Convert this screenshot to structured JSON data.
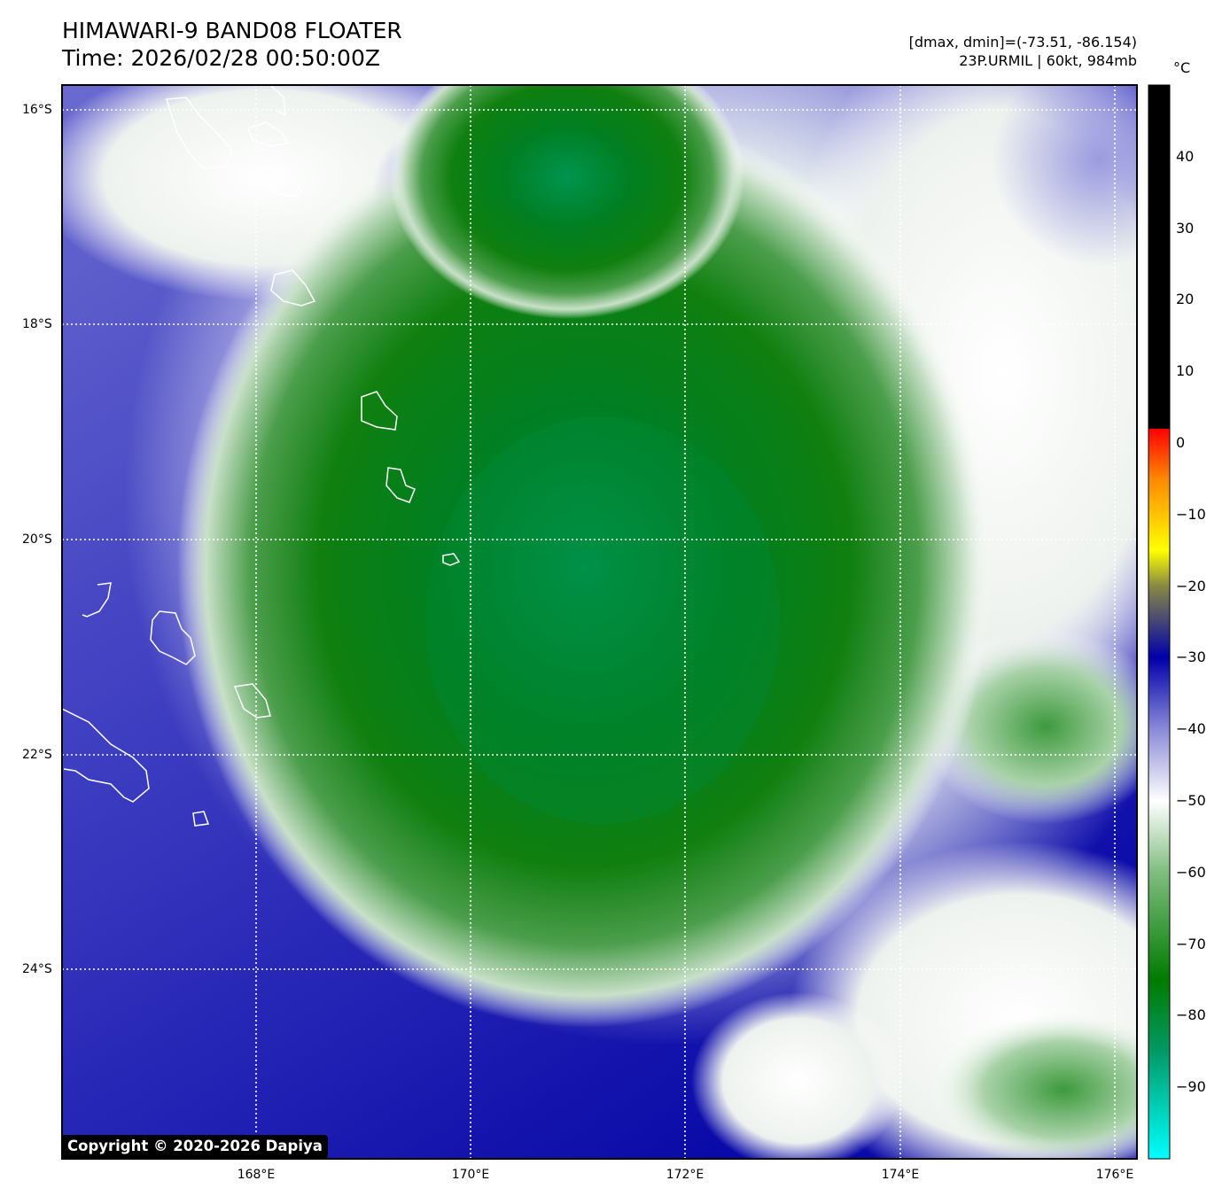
{
  "header": {
    "title": "HIMAWARI-9 BAND08 FLOATER",
    "time": "Time: 2026/02/28 00:50:00Z",
    "dminmax": "[dmax, dmin]=(-73.51, -86.154)",
    "storm": "23P.URMIL | 60kt, 984mb"
  },
  "colorbar": {
    "unit": "°C",
    "ticks": [
      "40",
      "30",
      "20",
      "10",
      "0",
      "−10",
      "−20",
      "−30",
      "−40",
      "−50",
      "−60",
      "−70",
      "−80",
      "−90"
    ],
    "range": [
      -100,
      50
    ],
    "stops": [
      {
        "t": -100,
        "color": "#00ffff"
      },
      {
        "t": -85,
        "color": "#009966"
      },
      {
        "t": -75,
        "color": "#007b00"
      },
      {
        "t": -60,
        "color": "#7fbd7f"
      },
      {
        "t": -50,
        "color": "#ffffff"
      },
      {
        "t": -40,
        "color": "#8a8ad8"
      },
      {
        "t": -30,
        "color": "#0000aa"
      },
      {
        "t": -20,
        "color": "#888844"
      },
      {
        "t": -15,
        "color": "#ffff00"
      },
      {
        "t": -5,
        "color": "#ff8800"
      },
      {
        "t": 2,
        "color": "#ff0000"
      },
      {
        "t": 2.01,
        "color": "#000000"
      },
      {
        "t": 50,
        "color": "#000000"
      }
    ]
  },
  "axes": {
    "lat_labels": [
      "16°S",
      "18°S",
      "20°S",
      "22°S",
      "24°S"
    ],
    "lon_labels": [
      "168°E",
      "170°E",
      "172°E",
      "174°E",
      "176°E"
    ]
  },
  "copyright": "Copyright © 2020-2026 Dapiya"
}
